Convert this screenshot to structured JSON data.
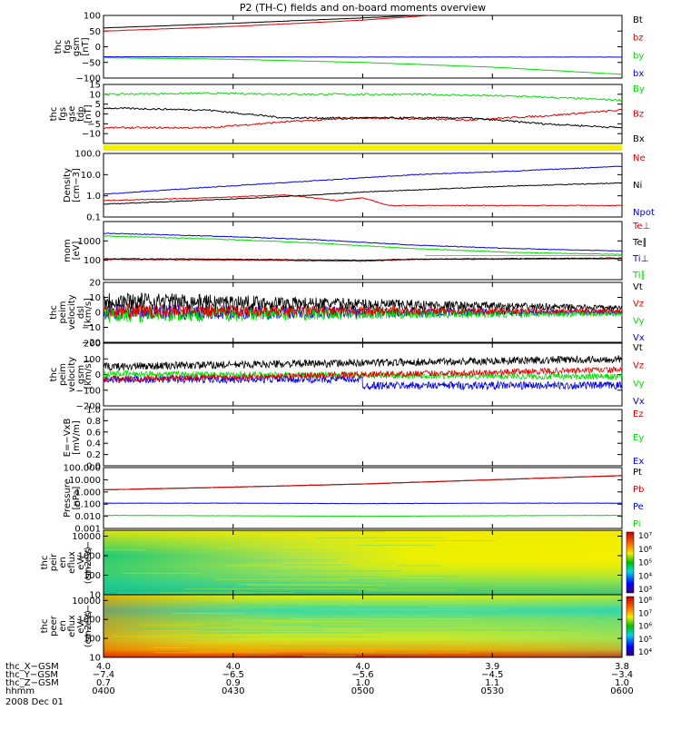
{
  "title": "P2 (TH-C) fields and on-board moments overview",
  "date_label": "2008 Dec 01",
  "colors": {
    "black": "#000000",
    "red": "#e00000",
    "green": "#00dd00",
    "blue": "#0000e0",
    "yellow": "#f5f000",
    "orange": "#e8a000"
  },
  "chart_data": [
    {
      "type": "line",
      "panel": "fgs_gsm",
      "ylabel": [
        "thc",
        "fgs",
        "gsm",
        "[nT]"
      ],
      "ylim": [
        -100,
        100
      ],
      "y_ticks": [
        "100",
        "50",
        "0",
        "−50",
        "−100"
      ],
      "y_tick_values": [
        100,
        50,
        0,
        -50,
        -100
      ],
      "series": [
        {
          "name": "Bt",
          "color": "#000000",
          "x": [
            0,
            0.25,
            0.5,
            0.6
          ],
          "values": [
            60,
            75,
            92,
            100
          ]
        },
        {
          "name": "bz",
          "color": "#e00000",
          "x": [
            0,
            0.25,
            0.5,
            0.63
          ],
          "values": [
            50,
            65,
            85,
            100
          ]
        },
        {
          "name": "by",
          "color": "#00dd00",
          "x": [
            0,
            0.25,
            0.5,
            0.75,
            1
          ],
          "values": [
            -35,
            -40,
            -50,
            -65,
            -88
          ]
        },
        {
          "name": "bx",
          "color": "#0000e0",
          "x": [
            0,
            0.5,
            1
          ],
          "values": [
            -32,
            -33,
            -33
          ]
        }
      ]
    },
    {
      "type": "line",
      "panel": "fgs_gse_tdp",
      "ylabel": [
        "thc",
        "fgs",
        "gse",
        "tdp",
        "[nT]"
      ],
      "ylim": [
        -15,
        15
      ],
      "y_ticks": [
        "15",
        "10",
        "5",
        "0",
        "−5",
        "−10"
      ],
      "y_tick_values": [
        15,
        10,
        5,
        0,
        -5,
        -10
      ],
      "series": [
        {
          "name": "By",
          "color": "#00dd00",
          "x": [
            0,
            0.2,
            0.4,
            0.6,
            0.8,
            1
          ],
          "values": [
            10,
            10.5,
            10,
            10,
            9,
            7
          ]
        },
        {
          "name": "Bz",
          "color": "#e00000",
          "x": [
            0,
            0.2,
            0.35,
            0.5,
            0.7,
            0.85,
            1
          ],
          "values": [
            -7,
            -7,
            -4,
            -2,
            -3,
            -1,
            2
          ]
        },
        {
          "name": "Bx",
          "color": "#000000",
          "x": [
            0,
            0.2,
            0.35,
            0.5,
            0.7,
            0.85,
            1
          ],
          "values": [
            3,
            2,
            -2,
            -2,
            -2,
            -5,
            -7
          ]
        }
      ]
    },
    {
      "type": "line",
      "panel": "density",
      "ylabel": [
        "Density",
        "[cm−3]"
      ],
      "ylim": [
        0.1,
        100
      ],
      "log": true,
      "y_ticks": [
        "100.0",
        "10.0",
        "1.0",
        "0.1"
      ],
      "y_tick_values": [
        100,
        10,
        1,
        0.1
      ],
      "series": [
        {
          "name": "Ne",
          "color": "#e00000",
          "x": [
            0,
            0.2,
            0.35,
            0.45,
            0.5,
            0.55,
            1
          ],
          "values": [
            0.6,
            0.8,
            1.1,
            0.6,
            0.8,
            0.35,
            0.35
          ]
        },
        {
          "name": "Ni",
          "color": "#000000",
          "x": [
            0,
            0.3,
            0.5,
            0.8,
            1
          ],
          "values": [
            0.4,
            0.8,
            1.5,
            3,
            4
          ]
        },
        {
          "name": "Npot",
          "color": "#0000e0",
          "x": [
            0,
            0.2,
            0.4,
            0.6,
            0.8,
            1
          ],
          "values": [
            1.2,
            2.5,
            5,
            10,
            15,
            25
          ]
        }
      ]
    },
    {
      "type": "line",
      "panel": "temperature",
      "ylabel": [
        "mom",
        "[eV]"
      ],
      "ylim": [
        10,
        10000
      ],
      "log": true,
      "y_ticks": [
        "1000",
        "100"
      ],
      "y_tick_values": [
        1000,
        100
      ],
      "series": [
        {
          "name": "Te⊥",
          "color": "#e00000",
          "x": [
            0,
            0.2,
            0.4,
            0.5,
            0.6,
            1
          ],
          "values": [
            110,
            105,
            95,
            90,
            110,
            120
          ]
        },
        {
          "name": "Te∥",
          "color": "#000000",
          "x": [
            0,
            0.2,
            0.4,
            0.5,
            0.6,
            1
          ],
          "values": [
            120,
            115,
            105,
            100,
            115,
            130
          ]
        },
        {
          "name": "Ti⊥",
          "color": "#0000e0",
          "x": [
            0,
            0.2,
            0.4,
            0.6,
            0.8,
            1
          ],
          "values": [
            2500,
            1800,
            1200,
            600,
            400,
            300
          ]
        },
        {
          "name": "Ti∥",
          "color": "#00dd00",
          "x": [
            0,
            0.2,
            0.4,
            0.6,
            0.8,
            1
          ],
          "values": [
            1800,
            1300,
            800,
            400,
            250,
            200
          ]
        }
      ]
    },
    {
      "type": "line",
      "panel": "peim_velocity_dsl",
      "ylabel": [
        "thc",
        "peim",
        "velocity",
        "dsl",
        "[km/s]"
      ],
      "ylim": [
        -20,
        20
      ],
      "y_ticks": [
        "20",
        "10",
        "0",
        "−10",
        "−20"
      ],
      "y_tick_values": [
        20,
        10,
        0,
        -10,
        -20
      ],
      "series": [
        {
          "name": "Vt",
          "color": "#000000"
        },
        {
          "name": "Vz",
          "color": "#e00000"
        },
        {
          "name": "Vy",
          "color": "#00dd00"
        },
        {
          "name": "Vx",
          "color": "#0000e0"
        }
      ]
    },
    {
      "type": "line",
      "panel": "peim_velocity_gsm",
      "ylabel": [
        "thc",
        "peim",
        "velocity",
        "gsm",
        "[km/s]"
      ],
      "ylim": [
        -200,
        200
      ],
      "y_ticks": [
        "200",
        "100",
        "0",
        "−100",
        "−200"
      ],
      "y_tick_values": [
        200,
        100,
        0,
        -100,
        -200
      ],
      "series": [
        {
          "name": "Vt",
          "color": "#000000"
        },
        {
          "name": "Vz",
          "color": "#e00000"
        },
        {
          "name": "Vy",
          "color": "#00dd00"
        },
        {
          "name": "Vx",
          "color": "#0000e0"
        }
      ]
    },
    {
      "type": "line",
      "panel": "e_vxb",
      "ylabel": [
        "E=−VxB",
        "[mV/m]"
      ],
      "ylim": [
        0,
        1
      ],
      "y_ticks": [
        "1.0",
        "0.8",
        "0.6",
        "0.4",
        "0.2",
        "0.0"
      ],
      "y_tick_values": [
        1.0,
        0.8,
        0.6,
        0.4,
        0.2,
        0.0
      ],
      "series": [
        {
          "name": "Ez",
          "color": "#e00000"
        },
        {
          "name": "Ey",
          "color": "#00dd00"
        },
        {
          "name": "Ex",
          "color": "#0000e0"
        }
      ]
    },
    {
      "type": "line",
      "panel": "pressure",
      "ylabel": [
        "Pressure",
        "[nPa]"
      ],
      "ylim": [
        0.001,
        100
      ],
      "log": true,
      "y_ticks": [
        "100.000",
        "10.000",
        "1.000",
        "0.100",
        "0.010",
        "0.001"
      ],
      "y_tick_values": [
        100,
        10,
        1,
        0.1,
        0.01,
        0.001
      ],
      "series": [
        {
          "name": "Pt",
          "color": "#000000",
          "x": [
            0,
            0.25,
            0.5,
            0.75,
            1
          ],
          "values": [
            1.5,
            2.5,
            4.5,
            10,
            22
          ]
        },
        {
          "name": "Pb",
          "color": "#e00000",
          "x": [
            0,
            0.25,
            0.5,
            0.75,
            1
          ],
          "values": [
            1.5,
            2.5,
            4.5,
            10,
            22
          ]
        },
        {
          "name": "Pe",
          "color": "#0000e0",
          "x": [
            0,
            0.25,
            0.5,
            0.75,
            1
          ],
          "values": [
            0.12,
            0.12,
            0.11,
            0.12,
            0.12
          ]
        },
        {
          "name": "Pi",
          "color": "#00dd00",
          "x": [
            0,
            0.25,
            0.5,
            0.75,
            1
          ],
          "values": [
            0.012,
            0.011,
            0.01,
            0.011,
            0.012
          ]
        }
      ]
    },
    {
      "type": "heatmap",
      "panel": "peir_spectrogram",
      "ylabel": [
        "thc",
        "peir",
        "en",
        "eflux",
        "eV/",
        "(cm2−s−",
        "sr−eV)"
      ],
      "ylim": [
        10,
        20000
      ],
      "log": true,
      "y_ticks": [
        "10000",
        "1000",
        "100",
        "10"
      ],
      "y_tick_values": [
        10000,
        1000,
        100,
        10
      ],
      "colorbar_ticks": [
        "10⁷",
        "10⁶",
        "10⁵",
        "10⁴",
        "10³"
      ]
    },
    {
      "type": "heatmap",
      "panel": "peer_spectrogram",
      "ylabel": [
        "thc",
        "peer",
        "en",
        "eflux",
        "eV/",
        "(cm2−s−",
        "sr−eV)"
      ],
      "ylim": [
        10,
        20000
      ],
      "log": true,
      "y_ticks": [
        "10000",
        "1000",
        "100",
        "10"
      ],
      "y_tick_values": [
        10000,
        1000,
        100,
        10
      ],
      "colorbar_ticks": [
        "10⁸",
        "10⁷",
        "10⁶",
        "10⁵",
        "10⁴"
      ]
    }
  ],
  "x_axis": {
    "row_labels": [
      "thc_X−GSM",
      "thc_Y−GSM",
      "thc_Z−GSM",
      "hhmm"
    ],
    "ticks": [
      {
        "x": [
          "4.0",
          "−7.4",
          "0.7",
          "0400"
        ]
      },
      {
        "x": [
          "4.0",
          "−6.5",
          "0.9",
          "0430"
        ]
      },
      {
        "x": [
          "4.0",
          "−5.6",
          "1.0",
          "0500"
        ]
      },
      {
        "x": [
          "3.9",
          "−4.5",
          "1.1",
          "0530"
        ]
      },
      {
        "x": [
          "3.8",
          "−3.4",
          "1.0",
          "0600"
        ]
      }
    ]
  }
}
